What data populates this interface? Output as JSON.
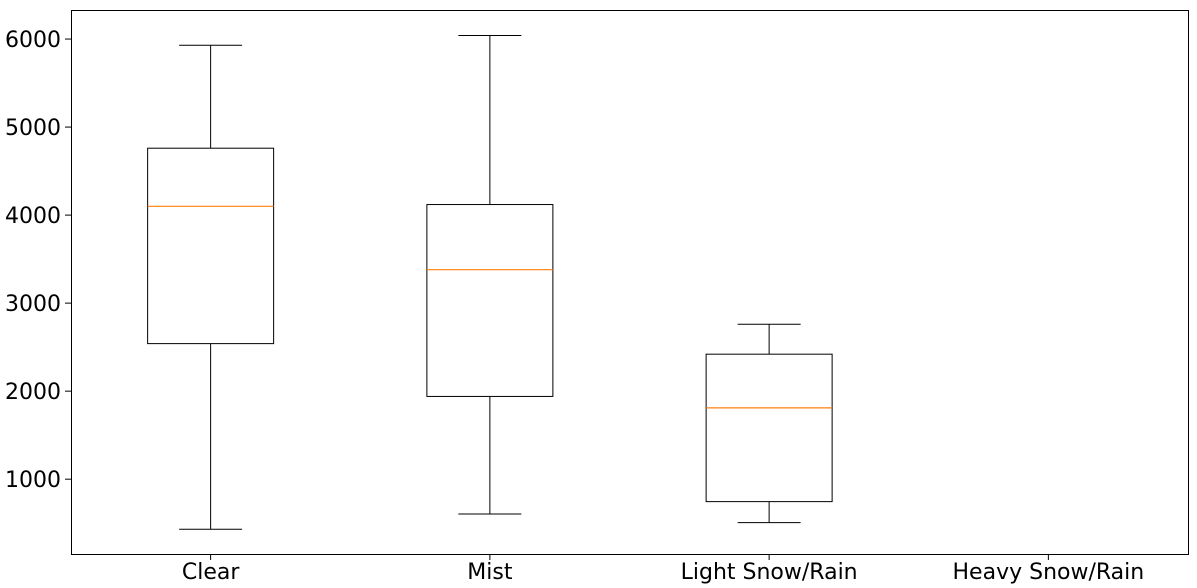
{
  "chart_data": {
    "type": "box",
    "title": "",
    "xlabel": "",
    "ylabel": "",
    "categories": [
      "Clear",
      "Mist",
      "Light Snow/Rain",
      "Heavy Snow/Rain"
    ],
    "boxes": [
      {
        "category": "Clear",
        "whisker_low": 431,
        "q1": 2540,
        "median": 4100,
        "q3": 4760,
        "whisker_high": 5930
      },
      {
        "category": "Mist",
        "whisker_low": 605,
        "q1": 1940,
        "median": 3380,
        "q3": 4120,
        "whisker_high": 6040
      },
      {
        "category": "Light Snow/Rain",
        "whisker_low": 506,
        "q1": 745,
        "median": 1810,
        "q3": 2420,
        "whisker_high": 2760
      },
      {
        "category": "Heavy Snow/Rain",
        "whisker_low": null,
        "q1": null,
        "median": null,
        "q3": null,
        "whisker_high": null
      }
    ],
    "y_ticks": [
      1000,
      2000,
      3000,
      4000,
      5000,
      6000
    ],
    "ylim": [
      150,
      6330
    ],
    "grid": false,
    "legend": "none",
    "colors": {
      "box": "#000000",
      "median": "#ff7f0e",
      "axes": "#000000"
    }
  }
}
